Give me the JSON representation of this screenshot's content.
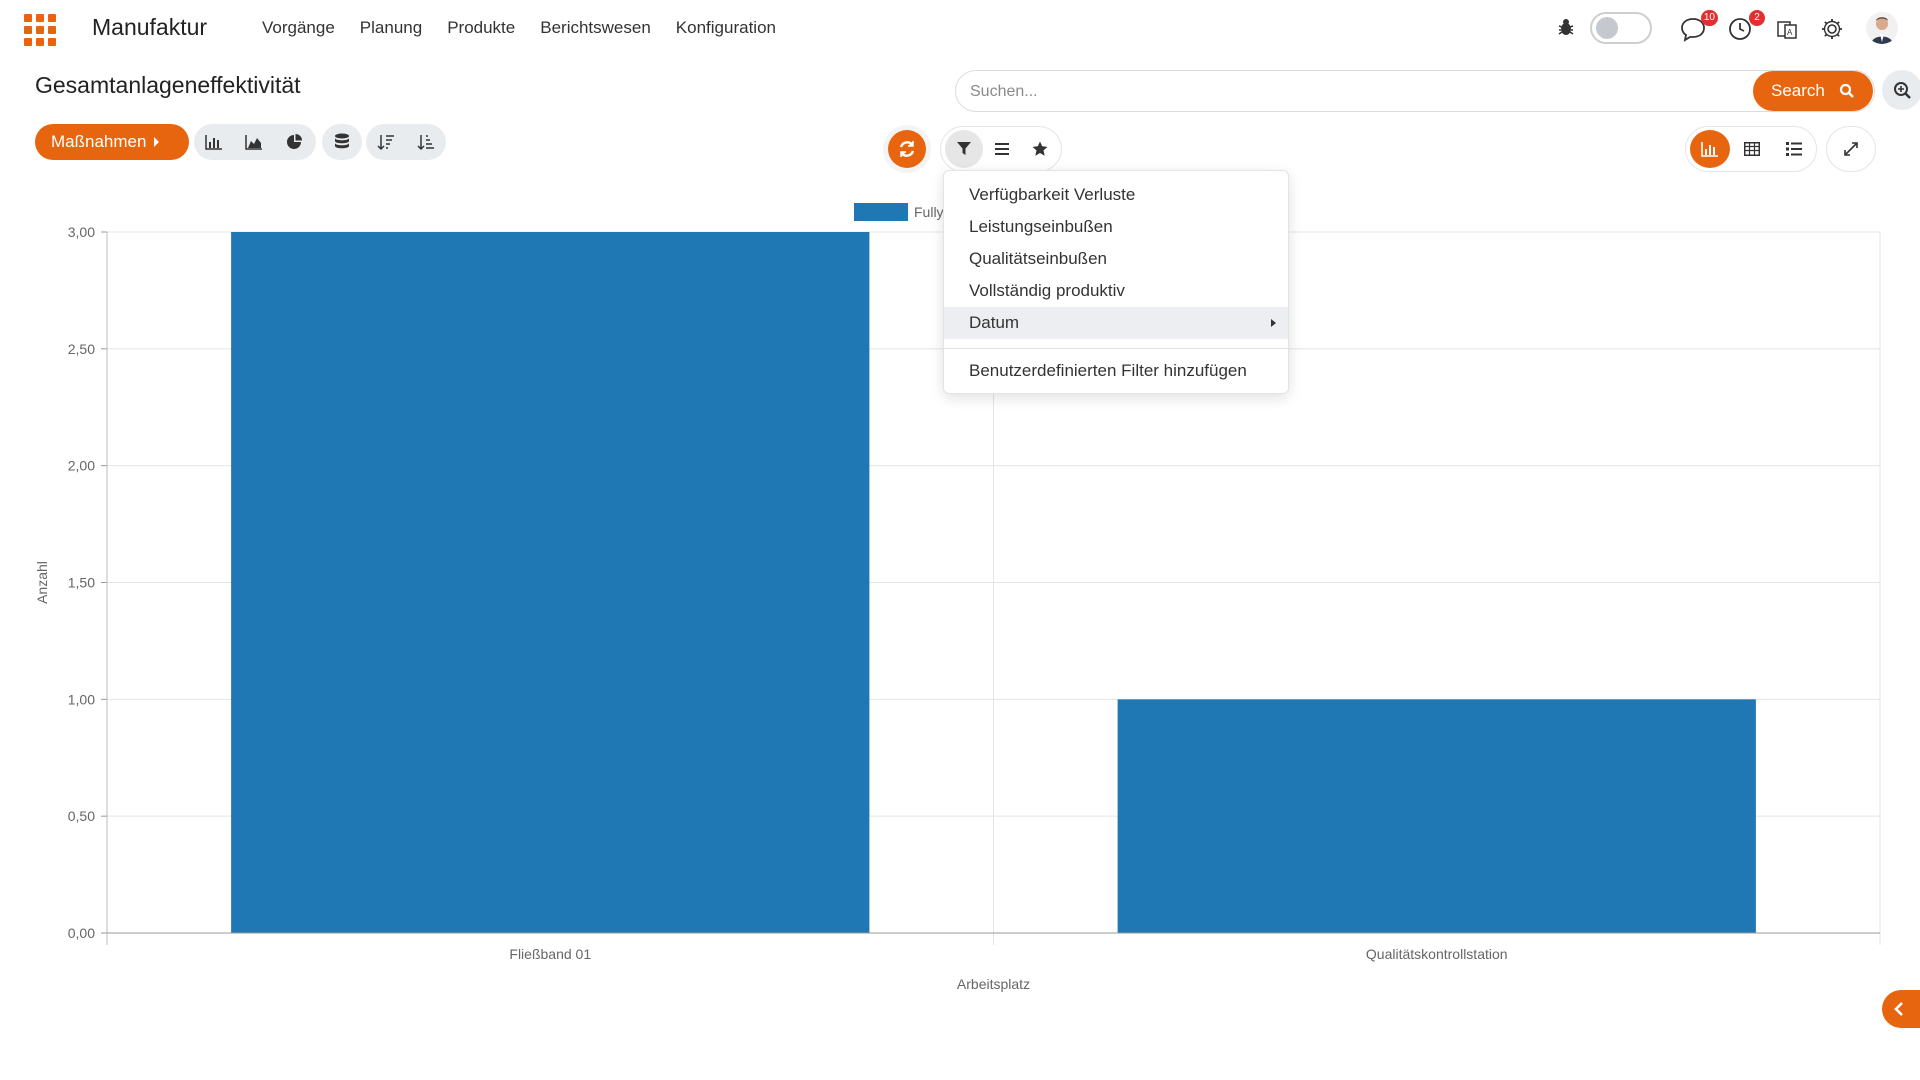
{
  "app": {
    "name": "Manufaktur"
  },
  "menu": [
    "Vorgänge",
    "Planung",
    "Produkte",
    "Berichtswesen",
    "Konfiguration"
  ],
  "systray": {
    "messages_badge": "10",
    "activities_badge": "2"
  },
  "page": {
    "title": "Gesamtanlageneffektivität"
  },
  "search": {
    "placeholder": "Suchen...",
    "button_label": "Search"
  },
  "actions": {
    "label": "Maßnahmen"
  },
  "filter_dropdown": {
    "items": [
      "Verfügbarkeit Verluste",
      "Leistungseinbußen",
      "Qualitätseinbußen",
      "Vollständig produktiv",
      "Datum"
    ],
    "custom_filter": "Benutzerdefinierten Filter hinzufügen"
  },
  "colors": {
    "accent": "#e8650f",
    "bar": "#1f77b4"
  },
  "chart_data": {
    "type": "bar",
    "categories": [
      "Fließband 01",
      "Qualitätskontrollstation"
    ],
    "series": [
      {
        "name": "Fully",
        "values": [
          3,
          1
        ]
      }
    ],
    "xlabel": "Arbeitsplatz",
    "ylabel": "Anzahl",
    "ylim": [
      0,
      3
    ],
    "yticks": [
      "0,00",
      "0,50",
      "1,00",
      "1,50",
      "2,00",
      "2,50",
      "3,00"
    ],
    "grid": true,
    "legend": "top-center"
  }
}
